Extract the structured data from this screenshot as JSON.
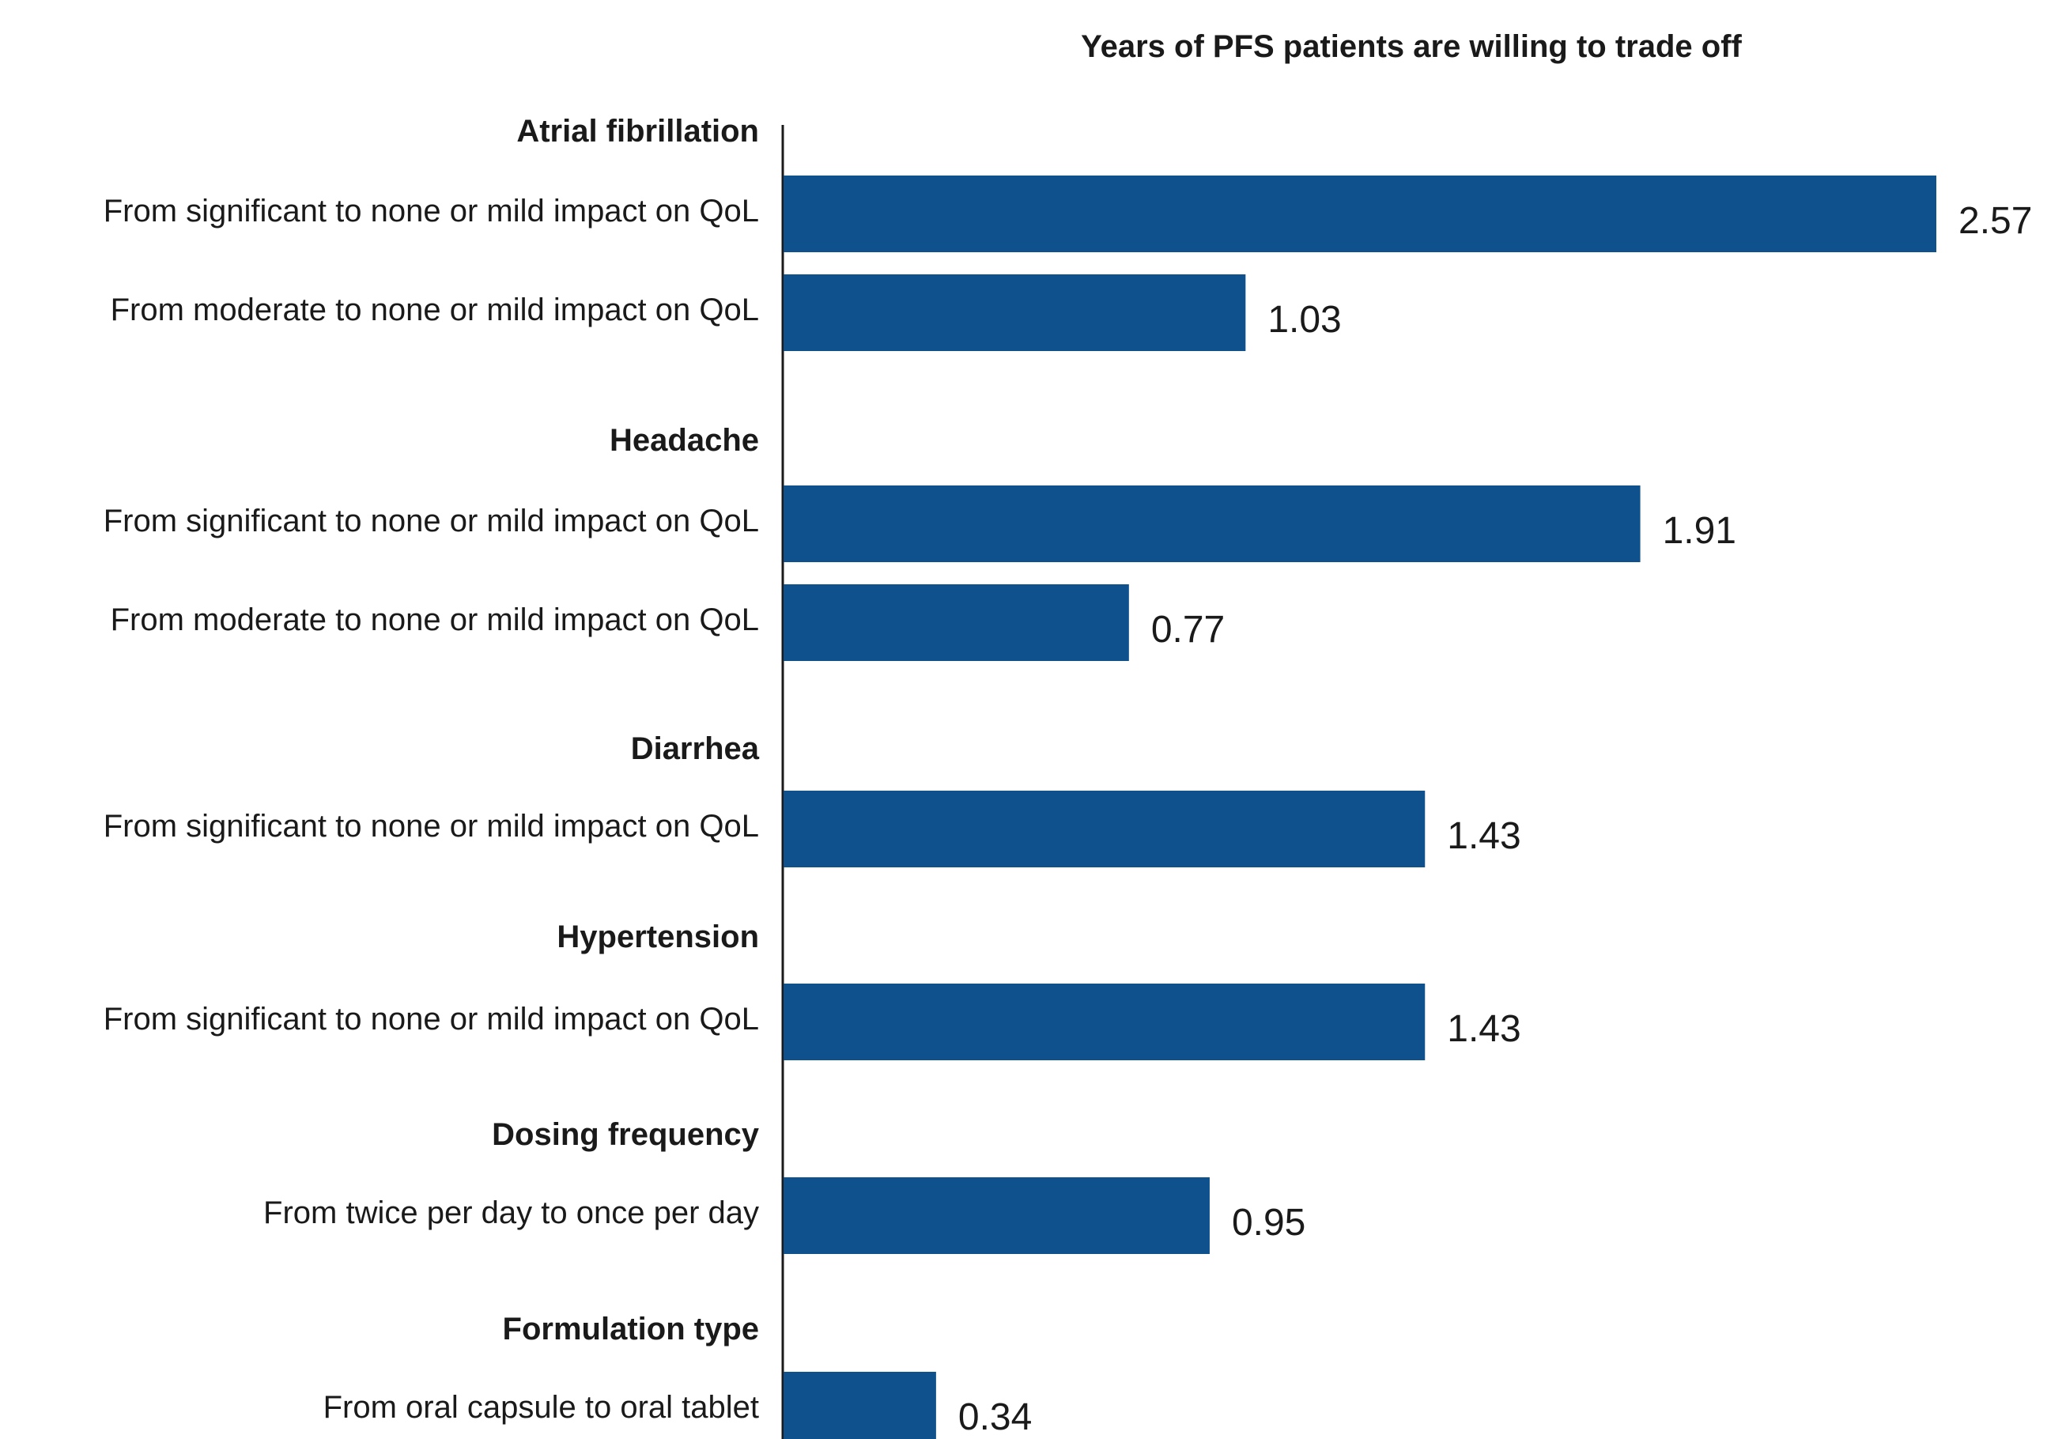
{
  "chart_data": {
    "type": "bar",
    "orientation": "horizontal",
    "title": "Years of PFS patients are willing to trade off",
    "xlabel": "",
    "ylabel": "",
    "xlim": [
      0,
      2.7
    ],
    "grid": false,
    "bar_color": "#0e518c",
    "groups": [
      {
        "label": "Atrial fibrillation",
        "bars": [
          {
            "label": "From significant to none or mild impact on QoL",
            "value": 2.57,
            "value_label": "2.57"
          },
          {
            "label": "From moderate to none or mild impact on QoL",
            "value": 1.03,
            "value_label": "1.03"
          }
        ]
      },
      {
        "label": "Headache",
        "bars": [
          {
            "label": "From significant to none or mild impact on QoL",
            "value": 1.91,
            "value_label": "1.91"
          },
          {
            "label": "From moderate to none or mild impact on QoL",
            "value": 0.77,
            "value_label": "0.77"
          }
        ]
      },
      {
        "label": "Diarrhea",
        "bars": [
          {
            "label": "From significant to none or mild impact on QoL",
            "value": 1.43,
            "value_label": "1.43"
          }
        ]
      },
      {
        "label": "Hypertension",
        "bars": [
          {
            "label": "From significant to none or mild impact on QoL",
            "value": 1.43,
            "value_label": "1.43"
          }
        ]
      },
      {
        "label": "Dosing frequency",
        "bars": [
          {
            "label": "From twice per day to once per day",
            "value": 0.95,
            "value_label": "0.95"
          }
        ]
      },
      {
        "label": "Formulation type",
        "bars": [
          {
            "label": "From oral capsule to oral tablet",
            "value": 0.34,
            "value_label": "0.34"
          }
        ]
      }
    ]
  }
}
